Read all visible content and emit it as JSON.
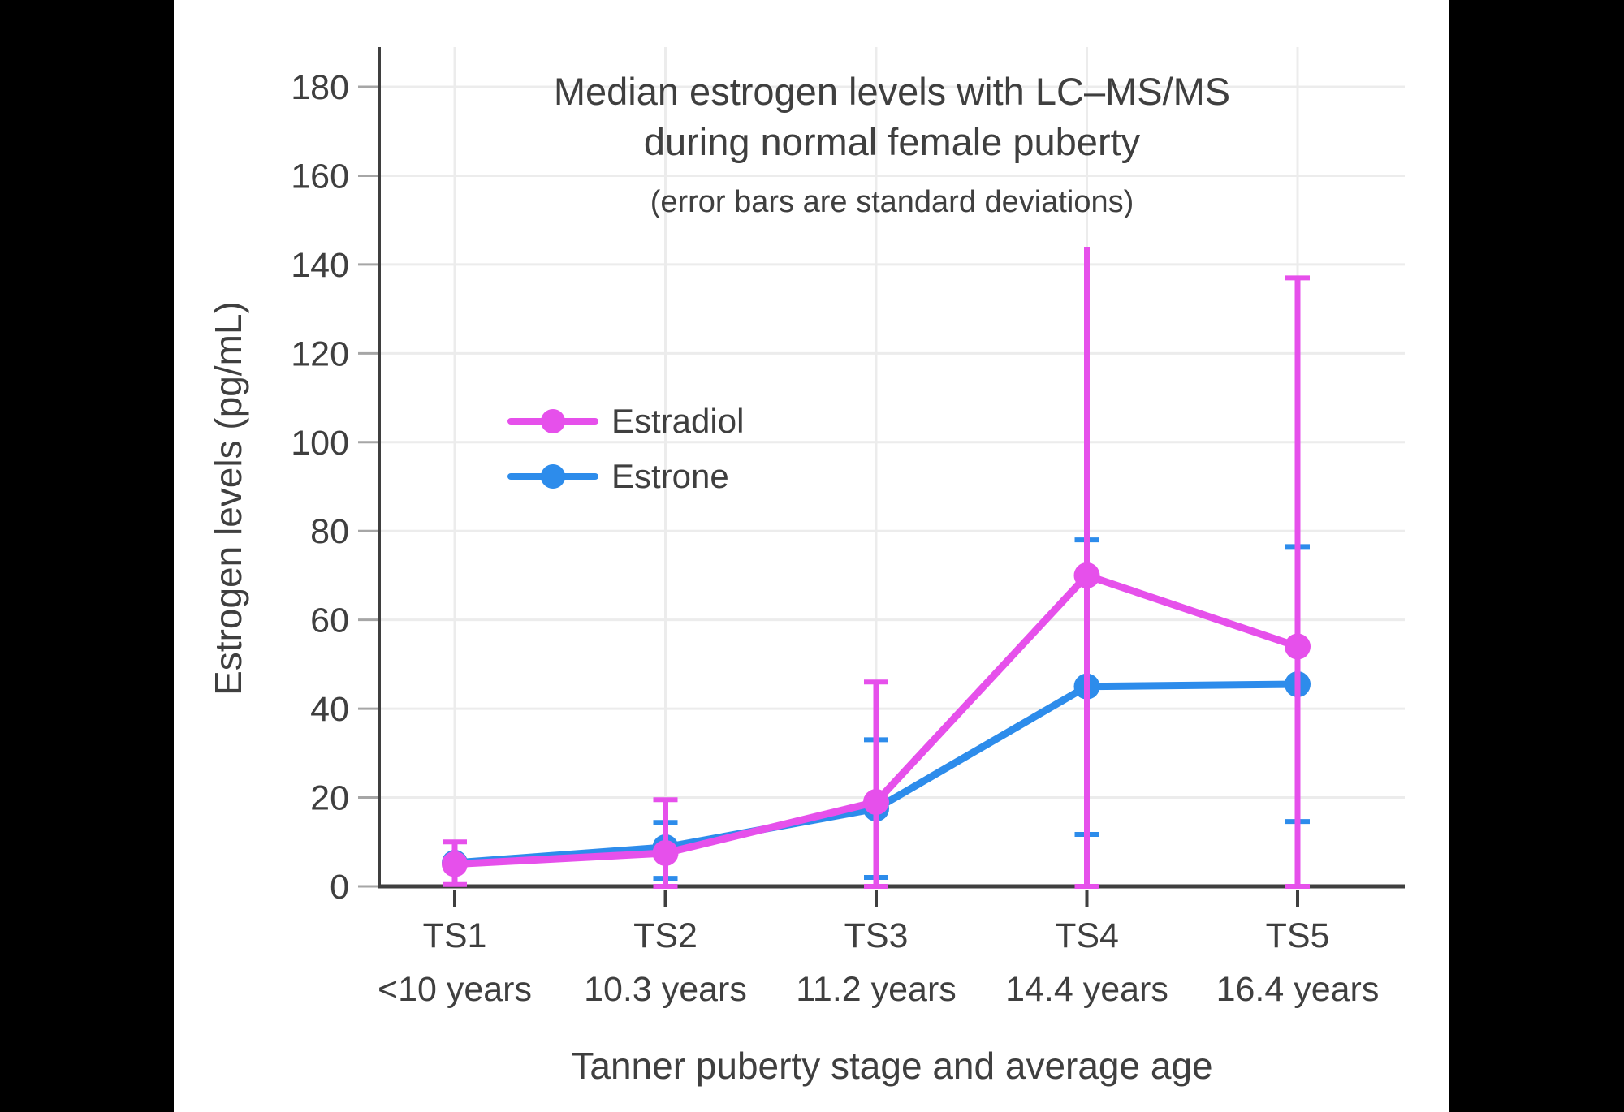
{
  "frame": {
    "letterbox_color": "#000000",
    "panel_color": "#ffffff",
    "text_color": "#3F3F3F",
    "grid_color": "#ECECEC",
    "axis_color": "#3F3F3F"
  },
  "chart_data": {
    "type": "line",
    "title_lines": [
      "Median estrogen levels with LC–MS/MS",
      "during normal female puberty"
    ],
    "subtitle": "(error bars are standard deviations)",
    "xlabel": "Tanner puberty stage and average age",
    "ylabel": "Estrogen levels (pg/mL)",
    "categories": [
      "TS1",
      "TS2",
      "TS3",
      "TS4",
      "TS5"
    ],
    "category_sublabels": [
      "<10 years",
      "10.3 years",
      "11.2 years",
      "14.4 years",
      "16.4 years"
    ],
    "y_ticks": [
      0,
      20,
      40,
      60,
      80,
      100,
      120,
      140,
      160,
      180
    ],
    "ylim": [
      0,
      190
    ],
    "grid": true,
    "legend_position": "inside-upper-left",
    "series": [
      {
        "name": "Estradiol",
        "color": "#E650EB",
        "values": [
          5,
          7.5,
          19,
          70,
          54
        ],
        "error_high": [
          10,
          19.5,
          46,
          144,
          137
        ],
        "error_low": [
          0.4,
          0,
          0,
          0,
          0
        ],
        "error_top_cap": [
          true,
          true,
          true,
          false,
          true
        ]
      },
      {
        "name": "Estrone",
        "color": "#2D8CEB",
        "values": [
          5.3,
          8.8,
          17.5,
          45,
          45.5
        ],
        "error_high": [
          null,
          14.4,
          33,
          78,
          76.5
        ],
        "error_low": [
          null,
          1.8,
          2,
          11.7,
          14.6
        ],
        "error_top_cap": [
          true,
          true,
          true,
          true,
          true
        ]
      }
    ]
  }
}
